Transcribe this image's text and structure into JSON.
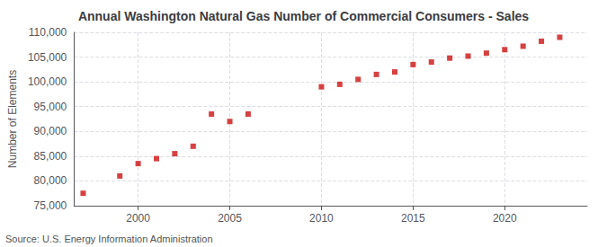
{
  "chart_data": {
    "type": "scatter",
    "title": "Annual Washington Natural Gas Number of Commercial Consumers - Sales",
    "ylabel": "Number of Elements",
    "source": "Source: U.S. Energy Information Administration",
    "x": [
      1997,
      1999,
      2000,
      2001,
      2002,
      2003,
      2004,
      2005,
      2006,
      2010,
      2011,
      2012,
      2013,
      2014,
      2015,
      2016,
      2017,
      2018,
      2019,
      2020,
      2021,
      2022,
      2023
    ],
    "values": [
      77500,
      81000,
      83500,
      84500,
      85500,
      87000,
      93500,
      92000,
      93500,
      99000,
      99500,
      100500,
      101500,
      102000,
      103500,
      104000,
      104800,
      105200,
      105800,
      106500,
      107200,
      108200,
      109000
    ],
    "color": "#cc1111",
    "marker": "square",
    "xlim": [
      1996.5,
      2024.5
    ],
    "xticks": [
      2000,
      2005,
      2010,
      2015,
      2020
    ],
    "ylim": [
      75000,
      110000
    ],
    "yticks": [
      {
        "value": 75000,
        "label": "75,000"
      },
      {
        "value": 80000,
        "label": "80,000"
      },
      {
        "value": 85000,
        "label": "85,000"
      },
      {
        "value": 90000,
        "label": "90,000"
      },
      {
        "value": 95000,
        "label": "95,000"
      },
      {
        "value": 100000,
        "label": "100,000"
      },
      {
        "value": 105000,
        "label": "105,000"
      },
      {
        "value": 110000,
        "label": "110,000"
      }
    ],
    "grid": true
  }
}
